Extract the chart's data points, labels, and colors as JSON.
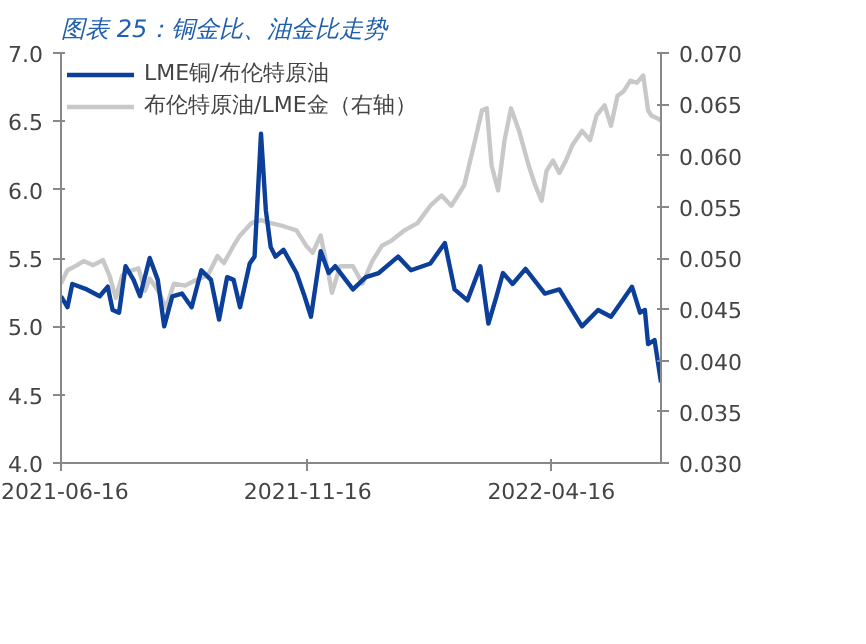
{
  "chart_data": {
    "type": "line",
    "title": "图表 25：铜金比、油金比走势",
    "legend": "top",
    "grid": false,
    "xlim": [
      "2021-06-16",
      "2022-06-23"
    ],
    "xticks": [
      "2021-06-16",
      "2021-11-16",
      "2022-04-16"
    ],
    "ylim": [
      4.0,
      7.0
    ],
    "yticks": [
      {
        "value": 4.0,
        "label": "4.0"
      },
      {
        "value": 4.5,
        "label": "4.5"
      },
      {
        "value": 5.0,
        "label": "5.0"
      },
      {
        "value": 5.5,
        "label": "5.5"
      },
      {
        "value": 6.0,
        "label": "6.0"
      },
      {
        "value": 6.5,
        "label": "6.5"
      },
      {
        "value": 7.0,
        "label": "7.0"
      }
    ],
    "y2lim": [
      0.03,
      0.07
    ],
    "y2ticks": [
      {
        "value": 0.03,
        "label": "0.030"
      },
      {
        "value": 0.035,
        "label": "0.035"
      },
      {
        "value": 0.04,
        "label": "0.040"
      },
      {
        "value": 0.045,
        "label": "0.045"
      },
      {
        "value": 0.05,
        "label": "0.050"
      },
      {
        "value": 0.055,
        "label": "0.055"
      },
      {
        "value": 0.06,
        "label": "0.060"
      },
      {
        "value": 0.065,
        "label": "0.065"
      },
      {
        "value": 0.07,
        "label": "0.070"
      }
    ],
    "series": [
      {
        "name": "LME铜/布伦特原油",
        "color": "#0b3f99",
        "x": [
          "2021-06-16",
          "2021-06-20",
          "2021-06-23",
          "2021-07-02",
          "2021-07-10",
          "2021-07-15",
          "2021-07-18",
          "2021-07-22",
          "2021-07-26",
          "2021-07-31",
          "2021-08-04",
          "2021-08-10",
          "2021-08-15",
          "2021-08-19",
          "2021-08-24",
          "2021-08-30",
          "2021-09-05",
          "2021-09-11",
          "2021-09-17",
          "2021-09-22",
          "2021-09-27",
          "2021-10-01",
          "2021-10-05",
          "2021-10-11",
          "2021-10-14",
          "2021-10-18",
          "2021-10-21",
          "2021-10-24",
          "2021-10-27",
          "2021-11-01",
          "2021-11-09",
          "2021-11-14",
          "2021-11-18",
          "2021-11-24",
          "2021-11-29",
          "2021-12-03",
          "2021-12-14",
          "2021-12-22",
          "2021-12-30",
          "2022-01-11",
          "2022-01-19",
          "2022-01-31",
          "2022-02-09",
          "2022-02-15",
          "2022-02-23",
          "2022-03-03",
          "2022-03-08",
          "2022-03-13",
          "2022-03-17",
          "2022-03-23",
          "2022-03-31",
          "2022-04-12",
          "2022-04-21",
          "2022-05-05",
          "2022-05-15",
          "2022-05-23",
          "2022-05-29",
          "2022-06-05",
          "2022-06-10",
          "2022-06-13",
          "2022-06-15",
          "2022-06-19",
          "2022-06-23"
        ],
        "values": [
          5.22,
          5.14,
          5.31,
          5.27,
          5.22,
          5.29,
          5.12,
          5.1,
          5.44,
          5.34,
          5.22,
          5.5,
          5.34,
          5.0,
          5.22,
          5.24,
          5.14,
          5.41,
          5.34,
          5.05,
          5.36,
          5.34,
          5.14,
          5.46,
          5.51,
          6.41,
          5.85,
          5.58,
          5.51,
          5.56,
          5.39,
          5.22,
          5.07,
          5.55,
          5.39,
          5.44,
          5.27,
          5.36,
          5.39,
          5.51,
          5.41,
          5.46,
          5.61,
          5.27,
          5.19,
          5.44,
          5.02,
          5.22,
          5.39,
          5.31,
          5.42,
          5.24,
          5.27,
          5.0,
          5.12,
          5.07,
          5.17,
          5.29,
          5.1,
          5.12,
          4.87,
          4.9,
          4.59
        ]
      },
      {
        "name": "布伦特原油/LME金（右轴）",
        "color": "#c8c8c8",
        "axis": "y2",
        "x": [
          "2021-06-16",
          "2021-06-20",
          "2021-06-26",
          "2021-06-30",
          "2021-07-06",
          "2021-07-12",
          "2021-07-16",
          "2021-07-20",
          "2021-07-24",
          "2021-07-30",
          "2021-08-03",
          "2021-08-07",
          "2021-08-10",
          "2021-08-16",
          "2021-08-20",
          "2021-08-25",
          "2021-09-01",
          "2021-09-07",
          "2021-09-15",
          "2021-09-21",
          "2021-09-25",
          "2021-10-01",
          "2021-10-05",
          "2021-10-12",
          "2021-10-18",
          "2021-10-24",
          "2021-11-01",
          "2021-11-09",
          "2021-11-15",
          "2021-11-19",
          "2021-11-24",
          "2021-11-29",
          "2021-12-01",
          "2021-12-06",
          "2021-12-14",
          "2021-12-20",
          "2021-12-26",
          "2022-01-01",
          "2022-01-07",
          "2022-01-15",
          "2022-01-23",
          "2022-01-31",
          "2022-02-07",
          "2022-02-13",
          "2022-02-21",
          "2022-02-27",
          "2022-03-04",
          "2022-03-07",
          "2022-03-10",
          "2022-03-14",
          "2022-03-18",
          "2022-03-22",
          "2022-03-27",
          "2022-04-02",
          "2022-04-06",
          "2022-04-10",
          "2022-04-13",
          "2022-04-17",
          "2022-04-21",
          "2022-04-25",
          "2022-04-29",
          "2022-05-05",
          "2022-05-10",
          "2022-05-14",
          "2022-05-19",
          "2022-05-23",
          "2022-05-27",
          "2022-05-31",
          "2022-06-04",
          "2022-06-08",
          "2022-06-12",
          "2022-06-15",
          "2022-06-17",
          "2022-06-21",
          "2022-06-23"
        ],
        "values": [
          0.0475,
          0.0488,
          0.0493,
          0.0497,
          0.0493,
          0.0498,
          0.0483,
          0.0461,
          0.0483,
          0.0488,
          0.049,
          0.0468,
          0.048,
          0.0466,
          0.0451,
          0.0475,
          0.0473,
          0.0478,
          0.0483,
          0.0502,
          0.0495,
          0.0512,
          0.0522,
          0.0534,
          0.0537,
          0.0534,
          0.0531,
          0.0527,
          0.0512,
          0.0505,
          0.0522,
          0.0483,
          0.0466,
          0.0492,
          0.0492,
          0.0475,
          0.0497,
          0.0512,
          0.0517,
          0.0527,
          0.0534,
          0.0551,
          0.0561,
          0.0551,
          0.0571,
          0.061,
          0.0644,
          0.0646,
          0.059,
          0.0566,
          0.0615,
          0.0646,
          0.0624,
          0.059,
          0.0571,
          0.0556,
          0.0585,
          0.0595,
          0.0583,
          0.0595,
          0.061,
          0.0624,
          0.0615,
          0.0639,
          0.0649,
          0.0629,
          0.0658,
          0.0663,
          0.0673,
          0.0671,
          0.0678,
          0.0644,
          0.0639,
          0.0636,
          0.0634
        ]
      }
    ]
  }
}
